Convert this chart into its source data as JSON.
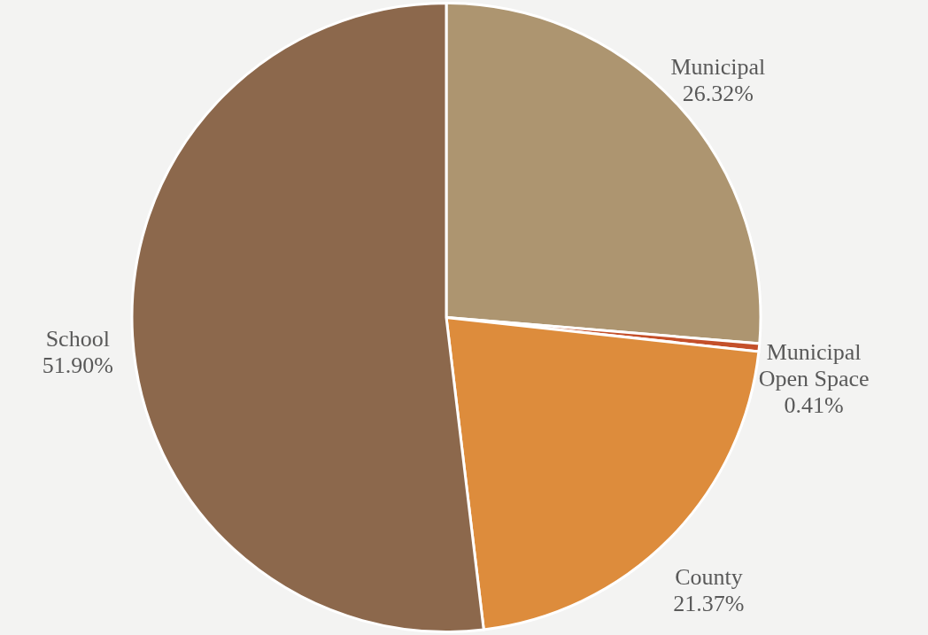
{
  "chart_data": {
    "type": "pie",
    "categories": [
      "Municipal",
      "Municipal Open Space",
      "County",
      "School"
    ],
    "values": [
      26.32,
      0.41,
      21.37,
      51.9
    ],
    "value_labels": [
      "26.32%",
      "0.41%",
      "21.37%",
      "51.90%"
    ],
    "colors": [
      "#ad9570",
      "#c4502a",
      "#dd8c3c",
      "#8c684c"
    ]
  }
}
